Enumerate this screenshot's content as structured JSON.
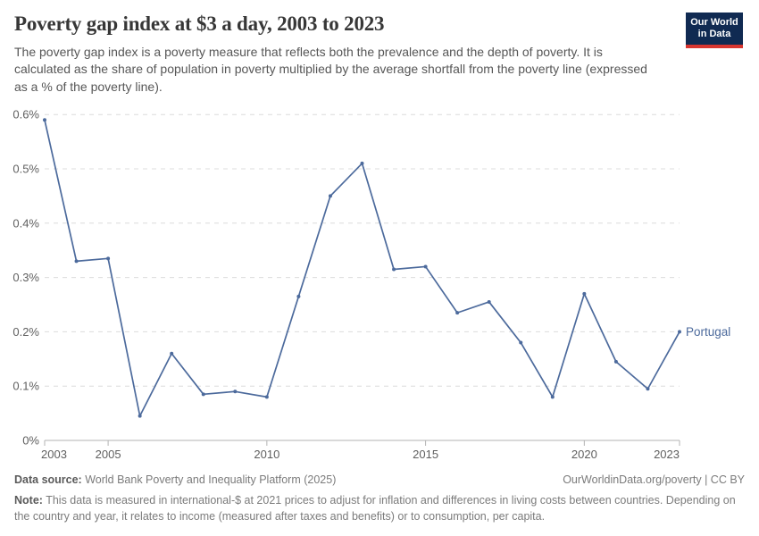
{
  "header": {
    "title": "Poverty gap index at $3 a day, 2003 to 2023",
    "subtitle": "The poverty gap index is a poverty measure that reflects both the prevalence and the depth of poverty. It is calculated as the share of population in poverty multiplied by the average shortfall from the poverty line (expressed as a % of the poverty line).",
    "logo": {
      "line1": "Our World",
      "line2": "in Data"
    }
  },
  "chart_data": {
    "type": "line",
    "title": "Poverty gap index at $3 a day, 2003 to 2023",
    "xlabel": "",
    "ylabel": "",
    "unit": "%",
    "xlim": [
      2003,
      2023
    ],
    "ylim": [
      0,
      0.6
    ],
    "grid": "horizontal-dashed",
    "legend_position": "end-of-line-label",
    "x": [
      2003,
      2004,
      2005,
      2006,
      2007,
      2008,
      2009,
      2010,
      2011,
      2012,
      2013,
      2014,
      2015,
      2016,
      2017,
      2018,
      2019,
      2020,
      2021,
      2022,
      2023
    ],
    "series": [
      {
        "name": "Portugal",
        "color": "#4C6A9C",
        "values": [
          0.59,
          0.33,
          0.335,
          0.045,
          0.16,
          0.085,
          0.09,
          0.08,
          0.265,
          0.45,
          0.51,
          0.315,
          0.32,
          0.235,
          0.255,
          0.18,
          0.08,
          0.27,
          0.145,
          0.095,
          0.2
        ]
      }
    ],
    "x_ticks": [
      {
        "value": 2003,
        "label": "2003"
      },
      {
        "value": 2005,
        "label": "2005"
      },
      {
        "value": 2010,
        "label": "2010"
      },
      {
        "value": 2015,
        "label": "2015"
      },
      {
        "value": 2020,
        "label": "2020"
      },
      {
        "value": 2023,
        "label": "2023"
      }
    ],
    "y_ticks": [
      {
        "value": 0,
        "label": "0%"
      },
      {
        "value": 0.1,
        "label": "0.1%"
      },
      {
        "value": 0.2,
        "label": "0.2%"
      },
      {
        "value": 0.3,
        "label": "0.3%"
      },
      {
        "value": 0.4,
        "label": "0.4%"
      },
      {
        "value": 0.5,
        "label": "0.5%"
      },
      {
        "value": 0.6,
        "label": "0.6%"
      }
    ]
  },
  "colors": {
    "series_line": "#4C6A9C",
    "logo_bg": "#102A52",
    "logo_accent": "#D8352F",
    "gridline": "#DCDCDC",
    "axis_line": "#B3B3B3",
    "tick_text": "#5F5F5F"
  },
  "footer": {
    "source_label": "Data source:",
    "source_text": " World Bank Poverty and Inequality Platform (2025)",
    "attribution": "OurWorldinData.org/poverty | CC BY",
    "note_label": "Note:",
    "note_text": " This data is measured in international-$ at 2021 prices to adjust for inflation and differences in living costs between countries. Depending on the country and year, it relates to income (measured after taxes and benefits) or to consumption, per capita."
  }
}
